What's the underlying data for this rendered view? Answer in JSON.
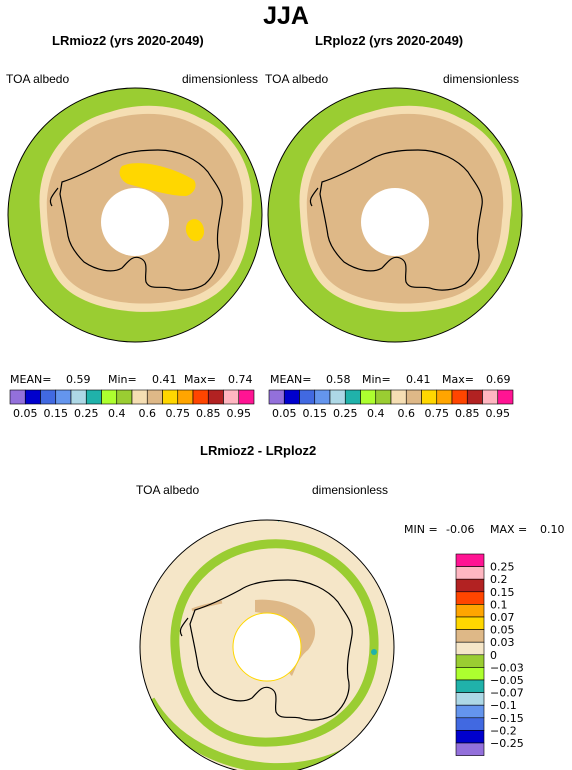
{
  "page": {
    "title": "JJA"
  },
  "panels": [
    {
      "title": "LRmioz2 (yrs 2020-2049)",
      "left_label": "TOA albedo",
      "right_label": "dimensionless",
      "stats": {
        "mean_label": "MEAN=",
        "mean": "0.59",
        "min_label": "Min=",
        "min": "0.41",
        "max_label": "Max=",
        "max": "0.74"
      },
      "colorbar_ticks": [
        "0.05",
        "0.15",
        "0.25",
        "0.4",
        "0.6",
        "0.75",
        "0.85",
        "0.95"
      ],
      "colorbar_colors": [
        "#9370DB",
        "#0000CD",
        "#4169E1",
        "#6495ED",
        "#ADD8E6",
        "#20B2AA",
        "#ADFF2F",
        "#9ACD32",
        "#F5DEB3",
        "#DEB887",
        "#FFD700",
        "#FFA500",
        "#FF4500",
        "#B22222",
        "#FFB6C1",
        "#FF1493"
      ]
    },
    {
      "title": "LRploz2 (yrs 2020-2049)",
      "left_label": "TOA albedo",
      "right_label": "dimensionless",
      "stats": {
        "mean_label": "MEAN=",
        "mean": "0.58",
        "min_label": "Min=",
        "min": "0.41",
        "max_label": "Max=",
        "max": "0.69"
      },
      "colorbar_ticks": [
        "0.05",
        "0.15",
        "0.25",
        "0.4",
        "0.6",
        "0.75",
        "0.85",
        "0.95"
      ],
      "colorbar_colors": [
        "#9370DB",
        "#0000CD",
        "#4169E1",
        "#6495ED",
        "#ADD8E6",
        "#20B2AA",
        "#ADFF2F",
        "#9ACD32",
        "#F5DEB3",
        "#DEB887",
        "#FFD700",
        "#FFA500",
        "#FF4500",
        "#B22222",
        "#FFB6C1",
        "#FF1493"
      ]
    }
  ],
  "difference": {
    "title": "LRmioz2 - LRploz2",
    "left_label": "TOA albedo",
    "right_label": "dimensionless",
    "stats": {
      "min_label": "MIN =",
      "min": "-0.06",
      "max_label": "MAX =",
      "max": "0.10"
    },
    "legend_ticks": [
      "0.25",
      "0.2",
      "0.15",
      "0.1",
      "0.07",
      "0.05",
      "0.03",
      "0",
      "−0.03",
      "−0.05",
      "−0.07",
      "−0.1",
      "−0.15",
      "−0.2",
      "−0.25"
    ],
    "legend_colors": [
      "#FF1493",
      "#FFB6C1",
      "#B22222",
      "#FF4500",
      "#FFA500",
      "#FFD700",
      "#DEB887",
      "#F5E6C8",
      "#9ACD32",
      "#ADFF2F",
      "#20B2AA",
      "#ADD8E6",
      "#6495ED",
      "#4169E1",
      "#0000CD",
      "#9370DB"
    ]
  },
  "chart_data": [
    {
      "type": "heatmap",
      "title": "LRmioz2 (yrs 2020-2049)",
      "variable": "TOA albedo",
      "units": "dimensionless",
      "season": "JJA",
      "projection": "south polar stereographic",
      "mean": 0.59,
      "min": 0.41,
      "max": 0.74,
      "color_levels": [
        0.05,
        0.15,
        0.25,
        0.4,
        0.6,
        0.75,
        0.85,
        0.95
      ],
      "regions": [
        {
          "name": "outer ocean",
          "range": [
            0.4,
            0.6
          ],
          "color": "#9ACD32"
        },
        {
          "name": "sea-ice edge band",
          "range": [
            0.6,
            0.65
          ],
          "color": "#F5DEB3"
        },
        {
          "name": "sea ice and Antarctica",
          "range": [
            0.65,
            0.75
          ],
          "color": "#DEB887"
        },
        {
          "name": "East Antarctic plateau patches",
          "range": [
            0.75,
            0.85
          ],
          "color": "#FFD700"
        }
      ]
    },
    {
      "type": "heatmap",
      "title": "LRploz2 (yrs 2020-2049)",
      "variable": "TOA albedo",
      "units": "dimensionless",
      "season": "JJA",
      "projection": "south polar stereographic",
      "mean": 0.58,
      "min": 0.41,
      "max": 0.69,
      "color_levels": [
        0.05,
        0.15,
        0.25,
        0.4,
        0.6,
        0.75,
        0.85,
        0.95
      ],
      "regions": [
        {
          "name": "outer ocean",
          "range": [
            0.4,
            0.6
          ],
          "color": "#9ACD32"
        },
        {
          "name": "sea-ice edge band",
          "range": [
            0.6,
            0.65
          ],
          "color": "#F5DEB3"
        },
        {
          "name": "sea ice and Antarctica",
          "range": [
            0.65,
            0.75
          ],
          "color": "#DEB887"
        }
      ]
    },
    {
      "type": "heatmap",
      "title": "LRmioz2 - LRploz2",
      "variable": "TOA albedo",
      "units": "dimensionless",
      "season": "JJA",
      "projection": "south polar stereographic",
      "min": -0.06,
      "max": 0.1,
      "color_levels": [
        0.25,
        0.2,
        0.15,
        0.1,
        0.07,
        0.05,
        0.03,
        0,
        -0.03,
        -0.05,
        -0.07,
        -0.1,
        -0.15,
        -0.2,
        -0.25
      ],
      "regions": [
        {
          "name": "most of domain",
          "range": [
            0,
            0.03
          ],
          "color": "#F5E6C8"
        },
        {
          "name": "sea-ice edge ring",
          "range": [
            -0.03,
            0
          ],
          "color": "#9ACD32"
        },
        {
          "name": "outer ring patches",
          "range": [
            -0.05,
            -0.03
          ],
          "color": "#ADFF2F"
        },
        {
          "name": "small patches",
          "range": [
            -0.07,
            -0.05
          ],
          "color": "#20B2AA"
        },
        {
          "name": "East Antarctic interior",
          "range": [
            0.03,
            0.05
          ],
          "color": "#DEB887"
        }
      ]
    }
  ]
}
